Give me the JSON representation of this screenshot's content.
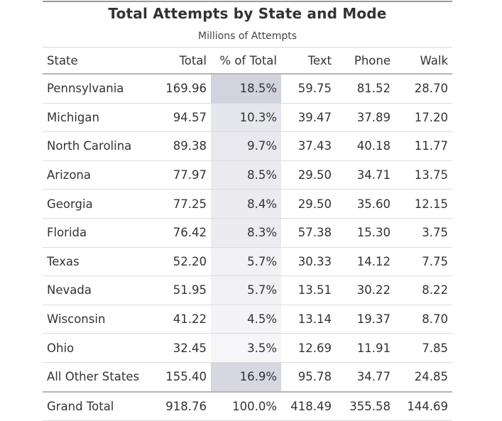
{
  "chart_data": {
    "type": "table",
    "title": "Total Attempts by State and Mode",
    "subtitle": "Millions of Attempts",
    "columns": [
      "State",
      "Total",
      "% of Total",
      "Text",
      "Phone",
      "Walk"
    ],
    "rows": [
      {
        "state": "Pennsylvania",
        "total": "169.96",
        "pct": "18.5%",
        "text": "59.75",
        "phone": "81.52",
        "walk": "28.70",
        "pct_value": 18.5
      },
      {
        "state": "Michigan",
        "total": "94.57",
        "pct": "10.3%",
        "text": "39.47",
        "phone": "37.89",
        "walk": "17.20",
        "pct_value": 10.3
      },
      {
        "state": "North Carolina",
        "total": "89.38",
        "pct": "9.7%",
        "text": "37.43",
        "phone": "40.18",
        "walk": "11.77",
        "pct_value": 9.7
      },
      {
        "state": "Arizona",
        "total": "77.97",
        "pct": "8.5%",
        "text": "29.50",
        "phone": "34.71",
        "walk": "13.75",
        "pct_value": 8.5
      },
      {
        "state": "Georgia",
        "total": "77.25",
        "pct": "8.4%",
        "text": "29.50",
        "phone": "35.60",
        "walk": "12.15",
        "pct_value": 8.4
      },
      {
        "state": "Florida",
        "total": "76.42",
        "pct": "8.3%",
        "text": "57.38",
        "phone": "15.30",
        "walk": "3.75",
        "pct_value": 8.3
      },
      {
        "state": "Texas",
        "total": "52.20",
        "pct": "5.7%",
        "text": "30.33",
        "phone": "14.12",
        "walk": "7.75",
        "pct_value": 5.7
      },
      {
        "state": "Nevada",
        "total": "51.95",
        "pct": "5.7%",
        "text": "13.51",
        "phone": "30.22",
        "walk": "8.22",
        "pct_value": 5.7
      },
      {
        "state": "Wisconsin",
        "total": "41.22",
        "pct": "4.5%",
        "text": "13.14",
        "phone": "19.37",
        "walk": "8.70",
        "pct_value": 4.5
      },
      {
        "state": "Ohio",
        "total": "32.45",
        "pct": "3.5%",
        "text": "12.69",
        "phone": "11.91",
        "walk": "7.85",
        "pct_value": 3.5
      },
      {
        "state": "All Other States",
        "total": "155.40",
        "pct": "16.9%",
        "text": "95.78",
        "phone": "34.77",
        "walk": "24.85",
        "pct_value": 16.9
      }
    ],
    "grand_total": {
      "state": "Grand Total",
      "total": "918.76",
      "pct": "100.0%",
      "text": "418.49",
      "phone": "355.58",
      "walk": "144.69"
    },
    "pct_shading": {
      "low_color": "#f6f6f8",
      "high_color": "#d3d3df",
      "min": 3.5,
      "max": 18.5
    }
  }
}
